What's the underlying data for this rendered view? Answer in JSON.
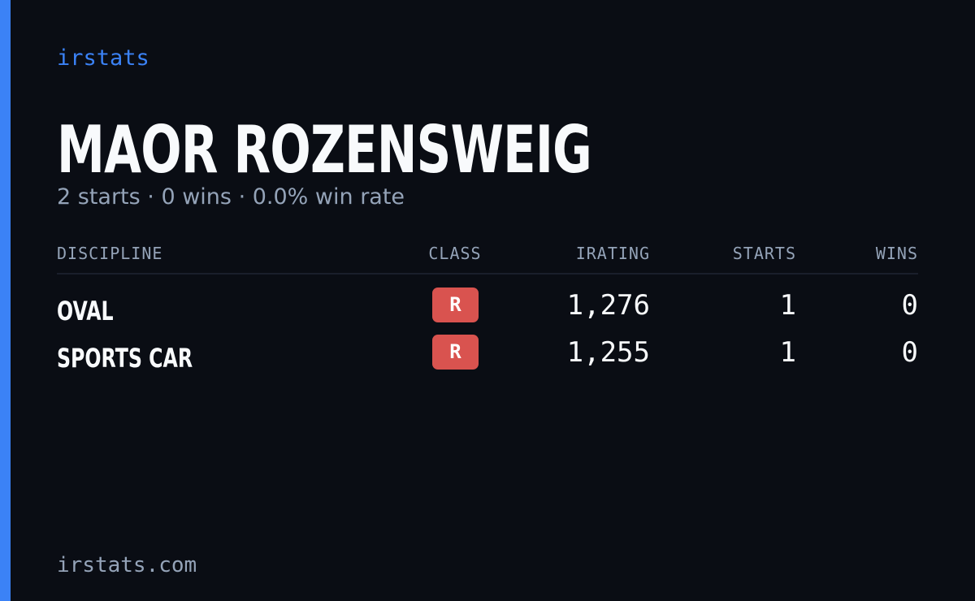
{
  "brand": "irstats",
  "name": "MAOR ROZENSWEIG",
  "subtitle": "2 starts · 0 wins · 0.0% win rate",
  "table": {
    "headers": [
      "DISCIPLINE",
      "CLASS",
      "IRATING",
      "STARTS",
      "WINS"
    ],
    "rows": [
      [
        "OVAL",
        "R",
        "1,276",
        "1",
        "0"
      ],
      [
        "SPORTS CAR",
        "R",
        "1,255",
        "1",
        "0"
      ]
    ]
  },
  "footer": "irstats.com"
}
